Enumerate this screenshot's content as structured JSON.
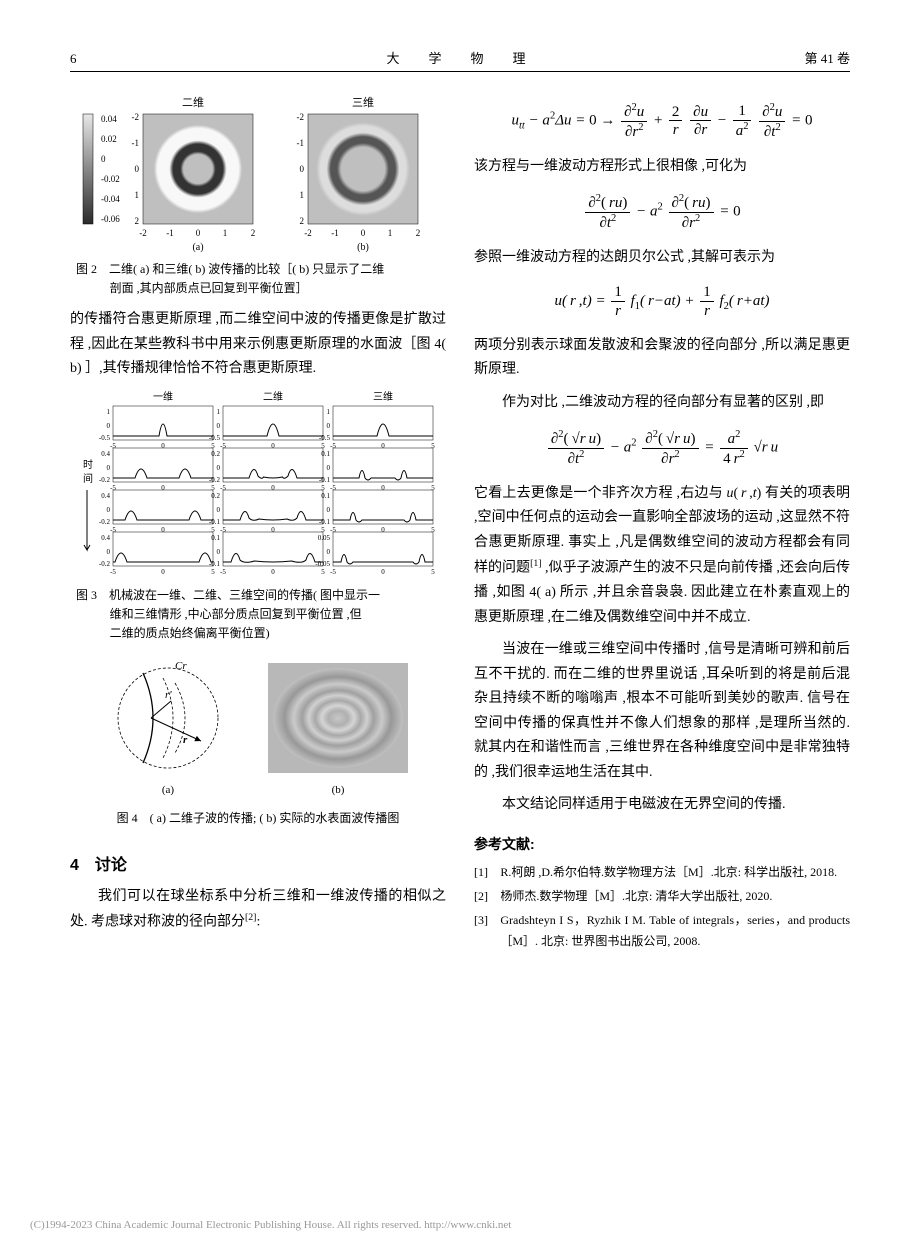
{
  "header": {
    "page_num": "6",
    "journal": "大　学　物　理",
    "volume": "第 41 卷"
  },
  "left": {
    "fig2": {
      "label_2d": "二维",
      "label_3d": "三维",
      "colorbar_ticks": [
        "0.04",
        "0.02",
        "0",
        "-0.02",
        "-0.04",
        "-0.06"
      ],
      "axis_ticks": [
        "-2",
        "-1",
        "0",
        "1",
        "2"
      ],
      "sub_a": "(a)",
      "sub_b": "(b)",
      "caption_l1": "图 2　二维( a) 和三维( b) 波传播的比较［( b) 只显示了二维",
      "caption_l2": "剖面 ,其内部质点已回复到平衡位置］"
    },
    "para1": "的传播符合惠更斯原理 ,而二维空间中波的传播更像是扩散过程 ,因此在某些教科书中用来示例惠更斯原理的水面波［图 4( b) ］,其传播规律恰恰不符合惠更斯原理.",
    "fig3": {
      "col_labels": [
        "一维",
        "二维",
        "三维"
      ],
      "time_label": "时间",
      "x_ticks": [
        "-5",
        "0",
        "5"
      ],
      "caption_l1": "图 3　机械波在一维、二维、三维空间的传播( 图中显示一",
      "caption_l2": "维和三维情形 ,中心部分质点回复到平衡位置 ,但",
      "caption_l3": "二维的质点始终偏离平衡位置)",
      "rows": [
        {
          "y1": [
            -0.5,
            1
          ],
          "y2": [
            -0.5,
            1
          ],
          "y3": [
            -0.5,
            1
          ]
        },
        {
          "y1": [
            -0.2,
            0.4
          ],
          "y2": [
            -0.2,
            0.2
          ],
          "y3": [
            -0.1,
            0.1
          ]
        },
        {
          "y1": [
            -0.2,
            0.4
          ],
          "y2": [
            -0.1,
            0.2
          ],
          "y3": [
            -0.1,
            0.1
          ]
        },
        {
          "y1": [
            -0.2,
            0.4
          ],
          "y2": [
            -0.1,
            0.1
          ],
          "y3": [
            -0.05,
            0.05
          ]
        }
      ]
    },
    "fig4": {
      "label_cr": "Cr",
      "label_rp": "r'",
      "label_r": "r",
      "sub_a": "(a)",
      "sub_b": "(b)",
      "caption": "图 4　( a) 二维子波的传播; ( b) 实际的水表面波传播图"
    },
    "sec4_title": "4　讨论",
    "para2_a": "我们可以在球坐标系中分析三维和一维波传播的相似之处. 考虑球对称波的径向部分",
    "para2_sup": "[2]",
    "para2_b": ":"
  },
  "right": {
    "para1": "该方程与一维波动方程形式上很相像 ,可化为",
    "para2": "参照一维波动方程的达朗贝尔公式 ,其解可表示为",
    "para3": "两项分别表示球面发散波和会聚波的径向部分 ,所以满足惠更斯原理.",
    "para4": "作为对比 ,二维波动方程的径向部分有显著的区别 ,即",
    "para5_a": "它看上去更像是一个非齐次方程 ,右边与 ",
    "para5_b": " 有关的项表明 ,空间中任何点的运动会一直影响全部波场的运动 ,这显然不符合惠更斯原理. 事实上 ,凡是偶数维空间的波动方程都会有同样的问题",
    "para5_sup": "[1]",
    "para5_c": " ,似乎子波源产生的波不只是向前传播 ,还会向后传播 ,如图 4( a) 所示 ,并且余音袅袅. 因此建立在朴素直观上的惠更斯原理 ,在二维及偶数维空间中并不成立.",
    "para6": "当波在一维或三维空间中传播时 ,信号是清晰可辨和前后互不干扰的. 而在二维的世界里说话 ,耳朵听到的将是前后混杂且持续不断的嗡嗡声 ,根本不可能听到美妙的歌声. 信号在空间中传播的保真性并不像人们想象的那样 ,是理所当然的. 就其内在和谐性而言 ,三维世界在各种维度空间中是非常独特的 ,我们很幸运地生活在其中.",
    "para7": "本文结论同样适用于电磁波在无界空间的传播.",
    "refs_title": "参考文献:",
    "refs": [
      {
        "num": "[1]",
        "text": "R.柯朗 ,D.希尔伯特.数学物理方法［M］.北京: 科学出版社, 2018."
      },
      {
        "num": "[2]",
        "text": "杨师杰.数学物理［M］.北京: 清华大学出版社, 2020."
      },
      {
        "num": "[3]",
        "text": "Gradshteyn I S，Ryzhik I M. Table of integrals，series，and products［M］. 北京: 世界图书出版公司, 2008."
      }
    ]
  },
  "footer": "(C)1994-2023 China Academic Journal Electronic Publishing House. All rights reserved.    http://www.cnki.net",
  "colors": {
    "text": "#000000",
    "bg": "#ffffff",
    "footer": "#999999",
    "ring_light": "#f4f4f4",
    "ring_dark": "#444444",
    "ring_mid": "#bbbbbb",
    "grad_dark": "#2a2a2a",
    "grad_light": "#e8e8e8"
  }
}
